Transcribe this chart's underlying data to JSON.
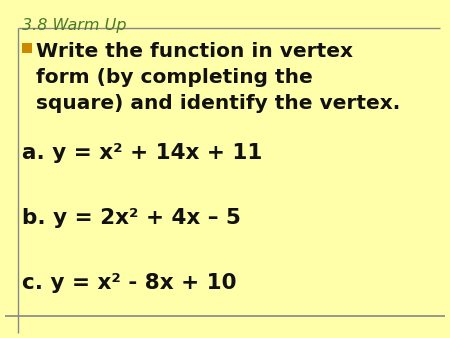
{
  "title": "3.8 Warm Up",
  "title_color": "#4a7a2a",
  "background_color": "#ffffaa",
  "border_color": "#888888",
  "bullet_color": "#cc8800",
  "text_color": "#111111",
  "bullet_lines": [
    "Write the function in vertex",
    "form (by completing the",
    "square) and identify the vertex."
  ],
  "line_a": "a. y = x² + 14x + 11",
  "line_b": "b. y = 2x² + 4x – 5",
  "line_c": "c. y = x² - 8x + 10",
  "title_fontsize": 11.5,
  "bullet_fontsize": 14.5,
  "equation_fontsize": 15.5
}
